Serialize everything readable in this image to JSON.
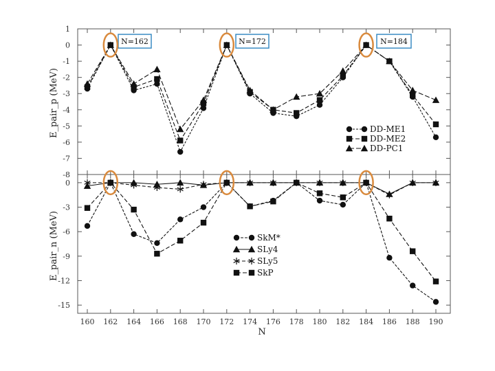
{
  "chart_data": [
    {
      "type": "line",
      "panel": "top",
      "ylabel": "E_pair_p (MeV)",
      "xlabel": "",
      "x": [
        160,
        162,
        164,
        166,
        168,
        170,
        172,
        174,
        176,
        178,
        180,
        182,
        184,
        186,
        188,
        190
      ],
      "ylim": [
        -8,
        1
      ],
      "yticks": [
        1,
        0,
        -1,
        -2,
        -3,
        -4,
        -5,
        -6,
        -7,
        -8
      ],
      "series": [
        {
          "name": "DD-ME1",
          "marker": "circle",
          "dash": "3,2",
          "values": [
            -2.7,
            0,
            -2.8,
            -2.4,
            -6.6,
            -3.9,
            0,
            -3,
            -4.2,
            -4.4,
            -3.7,
            -2,
            0,
            -1,
            -3.2,
            -5.7
          ]
        },
        {
          "name": "DD-ME2",
          "marker": "square",
          "dash": "6,3",
          "values": [
            -2.6,
            0,
            -2.6,
            -2.1,
            -5.9,
            -3.6,
            0,
            -2.9,
            -4,
            -4.2,
            -3.4,
            -1.9,
            0,
            -1,
            -3.1,
            -4.9
          ]
        },
        {
          "name": "DD-PC1",
          "marker": "triangle",
          "dash": "7,3",
          "values": [
            -2.4,
            0,
            -2.4,
            -1.5,
            -5.2,
            -3.4,
            0,
            -2.8,
            -4,
            -3.2,
            -3,
            -1.6,
            0,
            -1,
            -2.8,
            -3.4
          ]
        }
      ],
      "legend": "bottom-right",
      "annotations": [
        "N=162",
        "N=172",
        "N=184"
      ]
    },
    {
      "type": "line",
      "panel": "bottom",
      "ylabel": "E_pair_n (MeV)",
      "xlabel": "N",
      "x": [
        160,
        162,
        164,
        166,
        168,
        170,
        172,
        174,
        176,
        178,
        180,
        182,
        184,
        186,
        188,
        190
      ],
      "xticks": [
        160,
        162,
        164,
        166,
        168,
        170,
        172,
        174,
        176,
        178,
        180,
        182,
        184,
        186,
        188,
        190
      ],
      "ylim": [
        -16,
        1
      ],
      "yticks": [
        0,
        -3,
        -6,
        -9,
        -12,
        -15
      ],
      "series": [
        {
          "name": "SkM*",
          "marker": "circle",
          "dash": "4,2",
          "values": [
            -5.3,
            0,
            -6.3,
            -7.4,
            -4.5,
            -3,
            0,
            -2.9,
            -2.2,
            0,
            -2.2,
            -2.7,
            0,
            -9.2,
            -12.6,
            -14.6
          ]
        },
        {
          "name": "SLy4",
          "marker": "triangle",
          "dash": "",
          "values": [
            -0.4,
            0,
            0,
            -0.2,
            0,
            -0.3,
            0,
            0,
            0,
            0,
            0,
            0,
            0,
            -1.4,
            0,
            0
          ]
        },
        {
          "name": "SLy5",
          "marker": "asterisk",
          "dash": "5,3",
          "values": [
            0,
            0,
            -0.3,
            -0.6,
            -0.8,
            -0.2,
            0,
            0,
            0,
            0,
            0,
            0,
            0,
            -1.5,
            0,
            0
          ]
        },
        {
          "name": "SkP",
          "marker": "square",
          "dash": "6,3",
          "values": [
            -3.1,
            0,
            -3.3,
            -8.7,
            -7.1,
            -4.9,
            0,
            -2.9,
            -2.3,
            0,
            -1.3,
            -1.8,
            0,
            -4.4,
            -8.4,
            -12.1
          ]
        }
      ],
      "legend": "center"
    }
  ]
}
